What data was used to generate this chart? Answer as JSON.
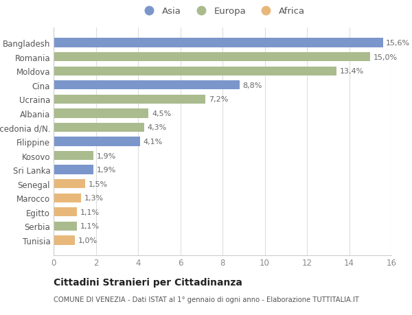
{
  "categories": [
    "Bangladesh",
    "Romania",
    "Moldova",
    "Cina",
    "Ucraina",
    "Albania",
    "Macedonia d/N.",
    "Filippine",
    "Kosovo",
    "Sri Lanka",
    "Senegal",
    "Marocco",
    "Egitto",
    "Serbia",
    "Tunisia"
  ],
  "values": [
    15.6,
    15.0,
    13.4,
    8.8,
    7.2,
    4.5,
    4.3,
    4.1,
    1.9,
    1.9,
    1.5,
    1.3,
    1.1,
    1.1,
    1.0
  ],
  "labels": [
    "15,6%",
    "15,0%",
    "13,4%",
    "8,8%",
    "7,2%",
    "4,5%",
    "4,3%",
    "4,1%",
    "1,9%",
    "1,9%",
    "1,5%",
    "1,3%",
    "1,1%",
    "1,1%",
    "1,0%"
  ],
  "continents": [
    "Asia",
    "Europa",
    "Europa",
    "Asia",
    "Europa",
    "Europa",
    "Europa",
    "Asia",
    "Europa",
    "Asia",
    "Africa",
    "Africa",
    "Africa",
    "Europa",
    "Africa"
  ],
  "colors": {
    "Asia": "#7b96cb",
    "Europa": "#aabb8e",
    "Africa": "#e8b87a"
  },
  "legend_labels": [
    "Asia",
    "Europa",
    "Africa"
  ],
  "title": "Cittadini Stranieri per Cittadinanza",
  "subtitle": "COMUNE DI VENEZIA - Dati ISTAT al 1° gennaio di ogni anno - Elaborazione TUTTITALIA.IT",
  "xlim": [
    0,
    16
  ],
  "xticks": [
    0,
    2,
    4,
    6,
    8,
    10,
    12,
    14,
    16
  ],
  "background_color": "#ffffff",
  "grid_color": "#dddddd"
}
